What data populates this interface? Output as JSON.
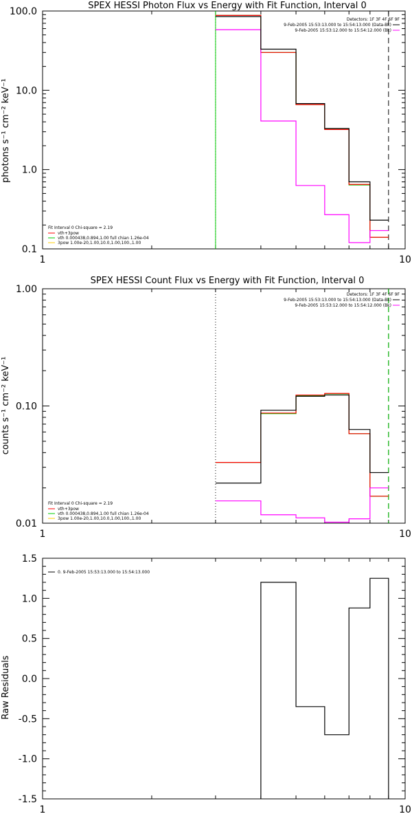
{
  "chart_data": [
    {
      "type": "line",
      "title": "SPEX HESSI Photon Flux vs Energy with Fit Function, Interval 0",
      "ylabel": "photons s⁻¹ cm⁻² keV⁻¹",
      "xlabel": "",
      "xscale": "log",
      "yscale": "log",
      "xlim": [
        1,
        10
      ],
      "ylim": [
        0.1,
        100
      ],
      "x_ticks": [
        "1",
        "10"
      ],
      "y_ticks": [
        "0.1",
        "1.0",
        "10.0",
        "100.0"
      ],
      "bin_edges": [
        3,
        4,
        5,
        6,
        7,
        8,
        9
      ],
      "series": [
        {
          "name": "9-Feb-2005 15:53:13.000 to 15:54:13.000 (Data-Bk)",
          "color": "#000000",
          "values": [
            85,
            33,
            6.8,
            3.3,
            0.7,
            0.23
          ]
        },
        {
          "name": "9-Feb-2005 15:53:12.000 to 15:54:12.000 (Bk)",
          "color": "#ff00ff",
          "values": [
            58,
            4.1,
            0.63,
            0.27,
            0.12,
            0.17
          ]
        },
        {
          "name": "vth+3pow",
          "color": "#ff0000",
          "values": [
            88,
            30,
            6.6,
            3.2,
            0.65,
            0.14
          ]
        },
        {
          "name": "vth 0.000438,0.894,1.00 full chian 1.26e-04",
          "color": "#00cc00",
          "values": [
            88,
            30,
            6.6,
            3.2,
            0.64,
            0.14
          ]
        }
      ],
      "vlines": [
        {
          "x": 3.0,
          "style": "dotted",
          "color": "#000000"
        },
        {
          "x": 3.0,
          "style": "solid",
          "color": "#00cc00"
        },
        {
          "x": 9.0,
          "style": "dashed",
          "color": "#000000"
        }
      ],
      "legend_top_right": {
        "header": "Detectors: 1F 3F 4F 6F 9F",
        "placement": "top-right"
      },
      "legend_bottom_left": {
        "header": "Fit Interval 0   Chi-square = 2.19",
        "items": [
          {
            "label": "vth+3pow",
            "color": "#ff0000"
          },
          {
            "label": "vth 0.000438,0.894,1.00  full chian 1.26e-04",
            "color": "#00cc00"
          },
          {
            "label": "3pow 1.00e-20,1.00,10.0,1.00,100.,1.00",
            "color": "#ffcc00"
          }
        ],
        "placement": "bottom-left"
      }
    },
    {
      "type": "line",
      "title": "SPEX HESSI Count Flux vs Energy with Fit Function, Interval 0",
      "ylabel": "counts s⁻¹ cm⁻² keV⁻¹",
      "xlabel": "",
      "xscale": "log",
      "yscale": "log",
      "xlim": [
        1,
        10
      ],
      "ylim": [
        0.01,
        1
      ],
      "x_ticks": [
        "1",
        "10"
      ],
      "y_ticks": [
        "0.01",
        "0.10",
        "1.00"
      ],
      "bin_edges": [
        3,
        4,
        5,
        6,
        7,
        8,
        9
      ],
      "series": [
        {
          "name": "9-Feb-2005 15:53:13.000 to 15:54:13.000 (Data-Bk)",
          "color": "#000000",
          "values": [
            0.022,
            0.092,
            0.121,
            0.124,
            0.063,
            0.027
          ]
        },
        {
          "name": "9-Feb-2005 15:53:12.000 to 15:54:12.000 (Bk)",
          "color": "#ff00ff",
          "values": [
            0.0155,
            0.0118,
            0.0111,
            0.0102,
            0.0109,
            0.02
          ]
        },
        {
          "name": "vth+3pow",
          "color": "#ff0000",
          "values": [
            0.033,
            0.087,
            0.124,
            0.128,
            0.058,
            0.017
          ]
        },
        {
          "name": "vth 0.000438,0.894,1.00 full chian 1.26e-04",
          "color": "#00cc00",
          "values": [
            0.033,
            0.086,
            0.123,
            0.127,
            0.058,
            0.017
          ]
        }
      ],
      "vlines": [
        {
          "x": 3.0,
          "style": "dotted",
          "color": "#000000"
        },
        {
          "x": 9.0,
          "style": "dashed",
          "color": "#000000"
        },
        {
          "x": 9.0,
          "style": "dashed",
          "color": "#00cc00"
        }
      ],
      "legend_top_right": {
        "header": "Detectors: 1F 3F 4F 6F 9F",
        "placement": "top-right"
      },
      "legend_bottom_left": {
        "header": "Fit Interval 0   Chi-square = 2.19",
        "items": [
          {
            "label": "vth+3pow",
            "color": "#ff0000"
          },
          {
            "label": "vth 0.000438,0.894,1.00  full chian 1.26e-04",
            "color": "#00cc00"
          },
          {
            "label": "3pow 1.00e-20,1.00,10.0,1.00,100.,1.00",
            "color": "#ffcc00"
          }
        ],
        "placement": "bottom-left"
      }
    },
    {
      "type": "line",
      "title": "",
      "ylabel": "Raw Residuals",
      "xlabel": "",
      "xscale": "log",
      "yscale": "linear",
      "xlim": [
        1,
        10
      ],
      "ylim": [
        -1.5,
        1.5
      ],
      "x_ticks": [
        "1",
        "10"
      ],
      "y_ticks": [
        "-1.5",
        "-1.0",
        "-0.5",
        "0.0",
        "0.5",
        "1.0",
        "1.5"
      ],
      "y_tick_values": [
        -1.5,
        -1.0,
        -0.5,
        0.0,
        0.5,
        1.0,
        1.5
      ],
      "bin_edges": [
        4,
        5,
        6,
        7,
        8,
        9
      ],
      "series": [
        {
          "name": "0.  9-Feb-2005 15:53:13.000 to 15:54:13.000",
          "color": "#000000",
          "values": [
            1.2,
            -0.35,
            -0.7,
            0.88,
            1.25
          ]
        }
      ],
      "legend_top_left": {
        "placement": "top-left"
      }
    }
  ]
}
